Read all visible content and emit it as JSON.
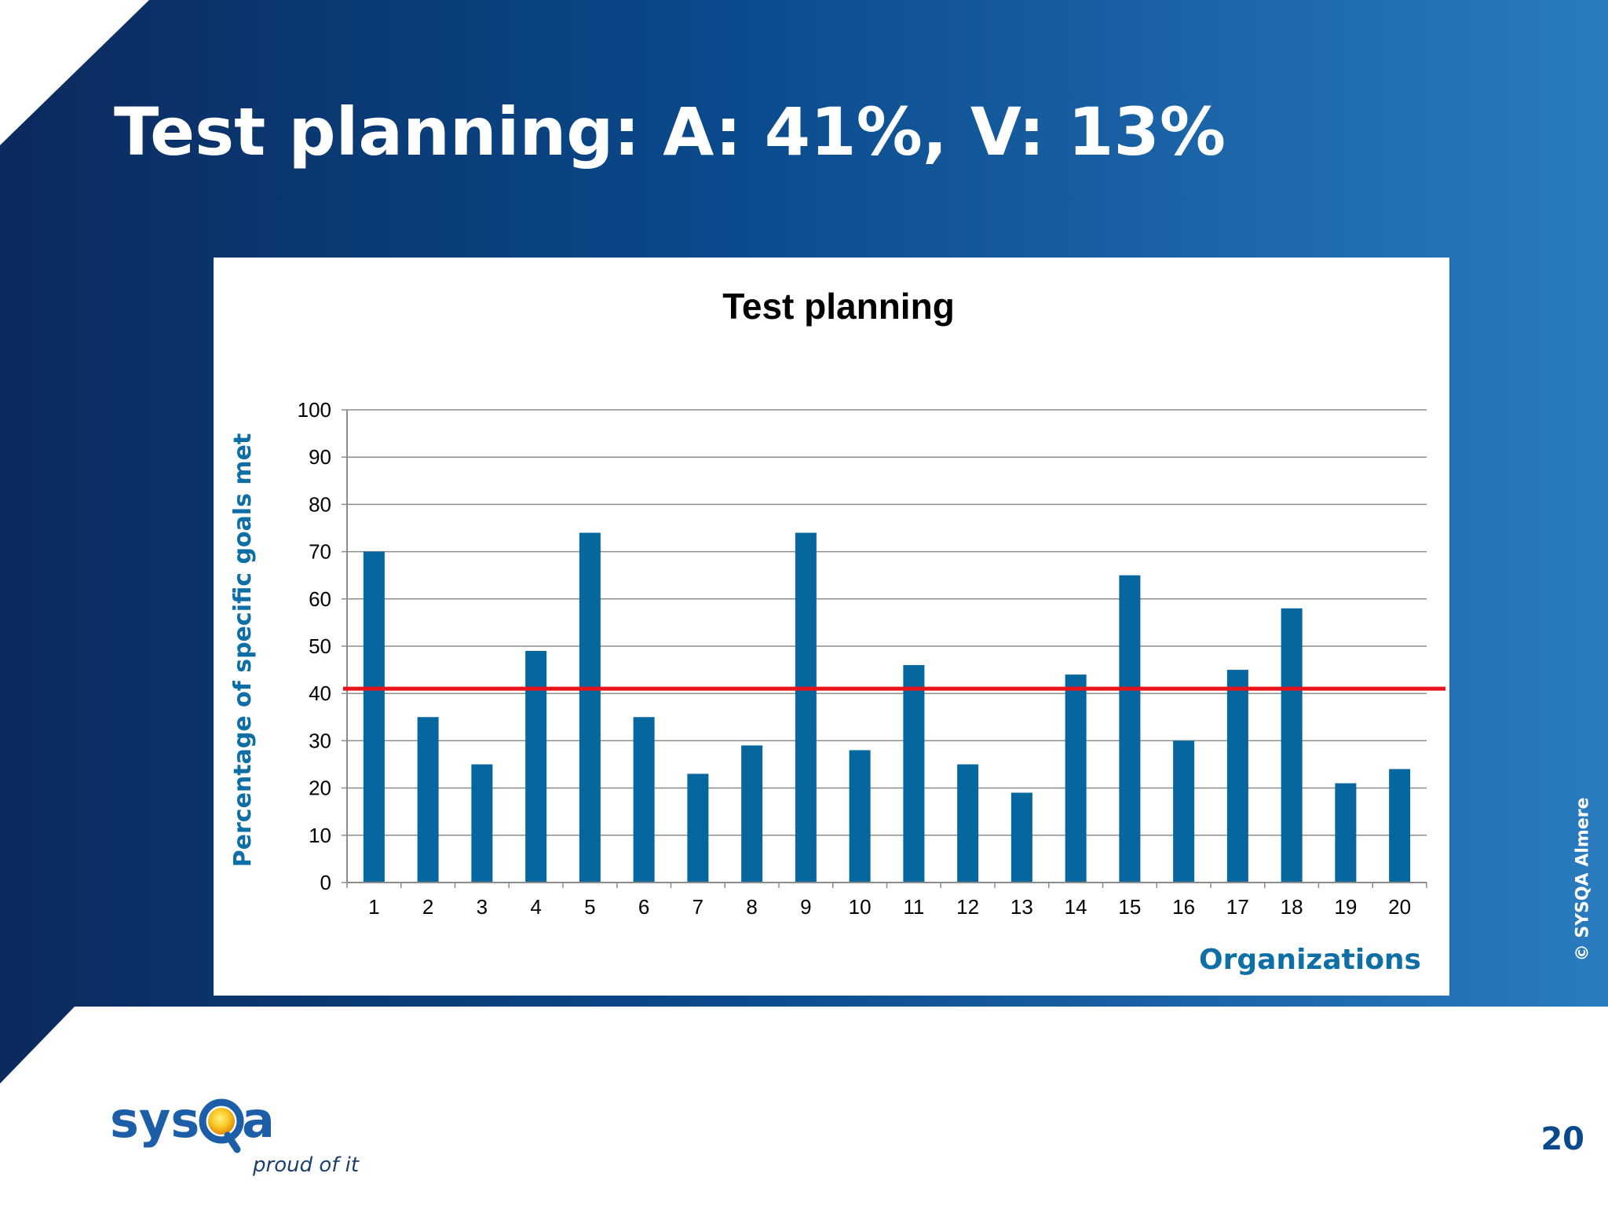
{
  "slide": {
    "title": "Test planning: A: 41%, V: 13%",
    "copyright": "© SYSQA Almere",
    "page_number": "20",
    "logo": {
      "brand": "sysQa",
      "tagline": "proud of it"
    }
  },
  "colors": {
    "bar": "#05679E",
    "average_line": "#E8141C",
    "axis_title": "#0E6FA6",
    "banner_dark": "#0B2A5E",
    "banner_light": "#2A7BBF",
    "page_number": "#0A4A8C"
  },
  "chart_data": {
    "type": "bar",
    "title": "Test planning",
    "xlabel": "Organizations",
    "ylabel": "Percentage of specific goals met",
    "categories": [
      "1",
      "2",
      "3",
      "4",
      "5",
      "6",
      "7",
      "8",
      "9",
      "10",
      "11",
      "12",
      "13",
      "14",
      "15",
      "16",
      "17",
      "18",
      "19",
      "20"
    ],
    "values": [
      70,
      35,
      25,
      49,
      74,
      35,
      23,
      29,
      74,
      28,
      46,
      25,
      19,
      44,
      65,
      30,
      45,
      58,
      21,
      24
    ],
    "ylim": [
      0,
      100
    ],
    "yticks": [
      0,
      10,
      20,
      30,
      40,
      50,
      60,
      70,
      80,
      90,
      100
    ],
    "reference_line": {
      "value": 41,
      "color": "#E8141C"
    },
    "grid": true,
    "legend": "none"
  }
}
